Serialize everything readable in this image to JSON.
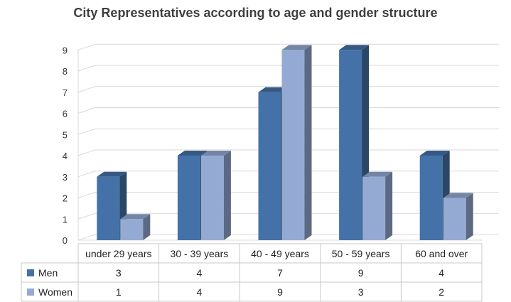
{
  "chart_data": {
    "type": "bar",
    "title": "City Representatives according to age and gender structure",
    "categories": [
      "under 29 years",
      "30 - 39 years",
      "40 - 49 years",
      "50 - 59 years",
      "60 and over"
    ],
    "series": [
      {
        "name": "Men",
        "values": [
          3,
          4,
          7,
          9,
          4
        ],
        "color": "#4472A8"
      },
      {
        "name": "Women",
        "values": [
          1,
          4,
          9,
          3,
          2
        ],
        "color": "#95AAD3"
      }
    ],
    "ylim": [
      0,
      9
    ],
    "yticks": [
      0,
      1,
      2,
      3,
      4,
      5,
      6,
      7,
      8,
      9
    ],
    "grid": true,
    "legend": "data-table",
    "style": "3d-clustered-column"
  }
}
